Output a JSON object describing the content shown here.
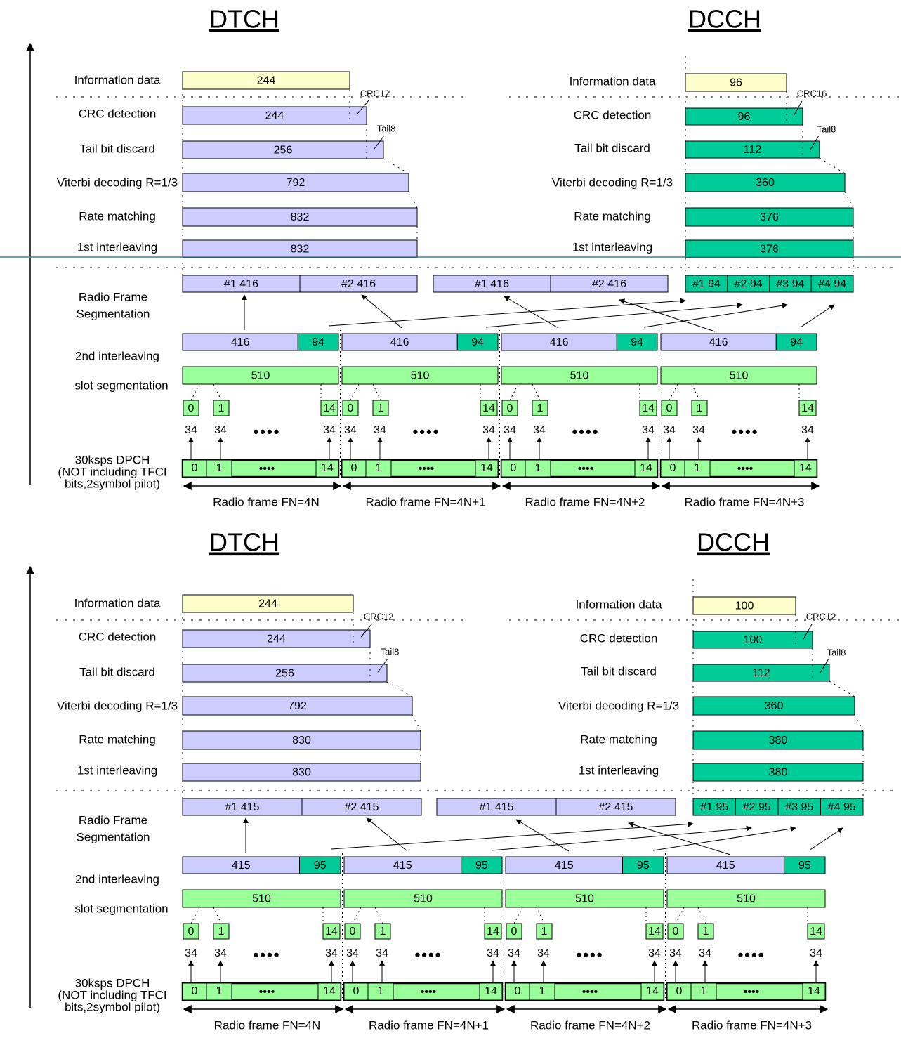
{
  "colors": {
    "info": "#ffffcc",
    "dtch": "#ccccff",
    "dcch": "#00cc99",
    "slot": "#99ff99",
    "outline": "#000000",
    "divider": "#2e8b8b"
  },
  "headers": {
    "dtch": "DTCH",
    "dcch": "DCCH"
  },
  "labels": {
    "info": "Information data",
    "crc": "CRC detection",
    "tail": "Tail bit discard",
    "viterbi": "Viterbi decoding R=1/3",
    "rate": "Rate matching",
    "inter1": "1st interleaving",
    "rfs1": "Radio Frame",
    "rfs2": "Segmentation",
    "inter2": "2nd  interleaving",
    "slotseg": "slot segmentation",
    "dpch1": "30ksps DPCH",
    "dpch2": "(NOT including TFCI",
    "dpch3": "bits,2symbol pilot)",
    "tail8": "Tail8"
  },
  "frames": [
    "Radio frame FN=4N",
    "Radio frame FN=4N+1",
    "Radio frame FN=4N+2",
    "Radio frame FN=4N+3"
  ],
  "slots": {
    "first": "0",
    "second": "1",
    "last": "14",
    "bits": "34",
    "dots": "••••",
    "dpch_dots": "••••"
  },
  "diagrams": [
    {
      "dtch": {
        "info": "244",
        "crc_label": "CRC12",
        "crc": "244",
        "tail": "256",
        "viterbi": "792",
        "rate": "832",
        "inter1": "832",
        "seg": [
          "#1  416",
          "#2  416",
          "#1  416",
          "#2  416"
        ],
        "frame_bits": "416"
      },
      "dcch": {
        "info": "96",
        "crc_label": "CRC16",
        "crc": "96",
        "tail": "112",
        "viterbi": "360",
        "rate": "376",
        "inter1": "376",
        "seg": [
          "#1 94",
          "#2 94",
          "#3 94",
          "#4 94"
        ],
        "frame_bits": "94"
      },
      "slot_bits": "510"
    },
    {
      "dtch": {
        "info": "244",
        "crc_label": "CRC12",
        "crc": "244",
        "tail": "256",
        "viterbi": "792",
        "rate": "830",
        "inter1": "830",
        "seg": [
          "#1 415",
          "#2 415",
          "#1 415",
          "#2 415"
        ],
        "frame_bits": "415"
      },
      "dcch": {
        "info": "100",
        "crc_label": "CRC12",
        "crc": "100",
        "tail": "112",
        "viterbi": "360",
        "rate": "380",
        "inter1": "380",
        "seg": [
          "#1 95",
          "#2 95",
          "#3 95",
          "#4 95"
        ],
        "frame_bits": "95"
      },
      "slot_bits": "510"
    }
  ]
}
